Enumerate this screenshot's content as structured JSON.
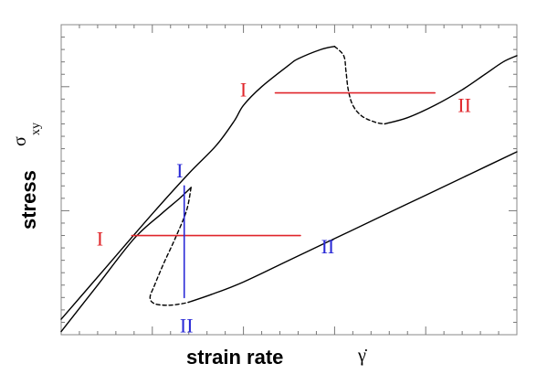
{
  "chart_data": {
    "type": "line",
    "title": "",
    "xlabel": "strain rate",
    "xsymbol": "γ̇",
    "ylabel": "stress",
    "ysymbol": "σ",
    "ysymbol_sub": "xy",
    "xlim": [
      0,
      100
    ],
    "ylim": [
      0,
      100
    ],
    "xticks": [],
    "yticks": [],
    "grid": false,
    "legend": "none",
    "colors": {
      "curve": "#000000",
      "red": "#e0262b",
      "blue": "#2a2ad6"
    },
    "series": [
      {
        "style": "solid",
        "color": "#000000",
        "x": [
          0.0,
          10.0,
          20.0,
          28.0,
          34.0,
          38.0,
          40.0,
          44.0,
          50.0,
          52.0,
          57.0,
          60.0
        ],
        "y": [
          5.0,
          22.0,
          39.0,
          52.0,
          61.0,
          69.0,
          74.0,
          80.0,
          87.0,
          89.0,
          92.0,
          93.0
        ]
      },
      {
        "style": "dashed",
        "color": "#000000",
        "x": [
          60.0,
          62.0,
          62.5,
          63.0,
          64.0,
          66.0,
          69.0,
          71.0
        ],
        "y": [
          93.0,
          90.0,
          85.0,
          79.0,
          74.0,
          70.5,
          68.5,
          68.0
        ]
      },
      {
        "style": "solid",
        "color": "#000000",
        "x": [
          71.0,
          76.0,
          82.0,
          88.0,
          93.0,
          97.0,
          100.0
        ],
        "y": [
          68.0,
          70.0,
          74.0,
          79.0,
          84.0,
          88.0,
          90.0
        ]
      },
      {
        "style": "solid",
        "color": "#000000",
        "x": [
          0.0,
          8.0,
          16.0,
          22.0,
          26.0,
          28.5
        ],
        "y": [
          1.0,
          16.0,
          31.0,
          39.0,
          44.0,
          47.5
        ]
      },
      {
        "style": "dashed",
        "color": "#000000",
        "x": [
          28.5,
          27.5,
          25.0,
          22.5,
          20.5,
          19.5,
          20.5,
          23.5,
          26.5,
          28.0
        ],
        "y": [
          47.5,
          40.0,
          31.0,
          23.0,
          16.0,
          12.0,
          10.0,
          9.5,
          10.0,
          10.5
        ]
      },
      {
        "style": "solid",
        "color": "#000000",
        "x": [
          28.0,
          33.0,
          40.0,
          50.0,
          60.0,
          70.0,
          80.0,
          90.0,
          100.0
        ],
        "y": [
          10.5,
          13.0,
          17.0,
          24.0,
          31.0,
          38.0,
          45.0,
          52.0,
          59.0
        ]
      },
      {
        "style": "tieline",
        "color": "#e0262b",
        "x": [
          47.0,
          82.0
        ],
        "y": [
          78.0,
          78.0
        ]
      },
      {
        "style": "tieline",
        "color": "#e0262b",
        "x": [
          15.5,
          52.5
        ],
        "y": [
          32.0,
          32.0
        ]
      },
      {
        "style": "tieline",
        "color": "#2a2ad6",
        "x": [
          27.0,
          27.0
        ],
        "y": [
          48.0,
          12.0
        ]
      }
    ],
    "annotations": [
      {
        "text": "I",
        "color": "#e0262b",
        "x": 40.0,
        "y": 79.0
      },
      {
        "text": "II",
        "color": "#e0262b",
        "x": 88.5,
        "y": 74.0
      },
      {
        "text": "I",
        "color": "#e0262b",
        "x": 8.5,
        "y": 31.0
      },
      {
        "text": "II",
        "color": "#2a2ad6",
        "x": 58.5,
        "y": 28.5
      },
      {
        "text": "I",
        "color": "#2a2ad6",
        "x": 26.0,
        "y": 53.0
      },
      {
        "text": "II",
        "color": "#2a2ad6",
        "x": 27.5,
        "y": 3.0
      }
    ]
  }
}
